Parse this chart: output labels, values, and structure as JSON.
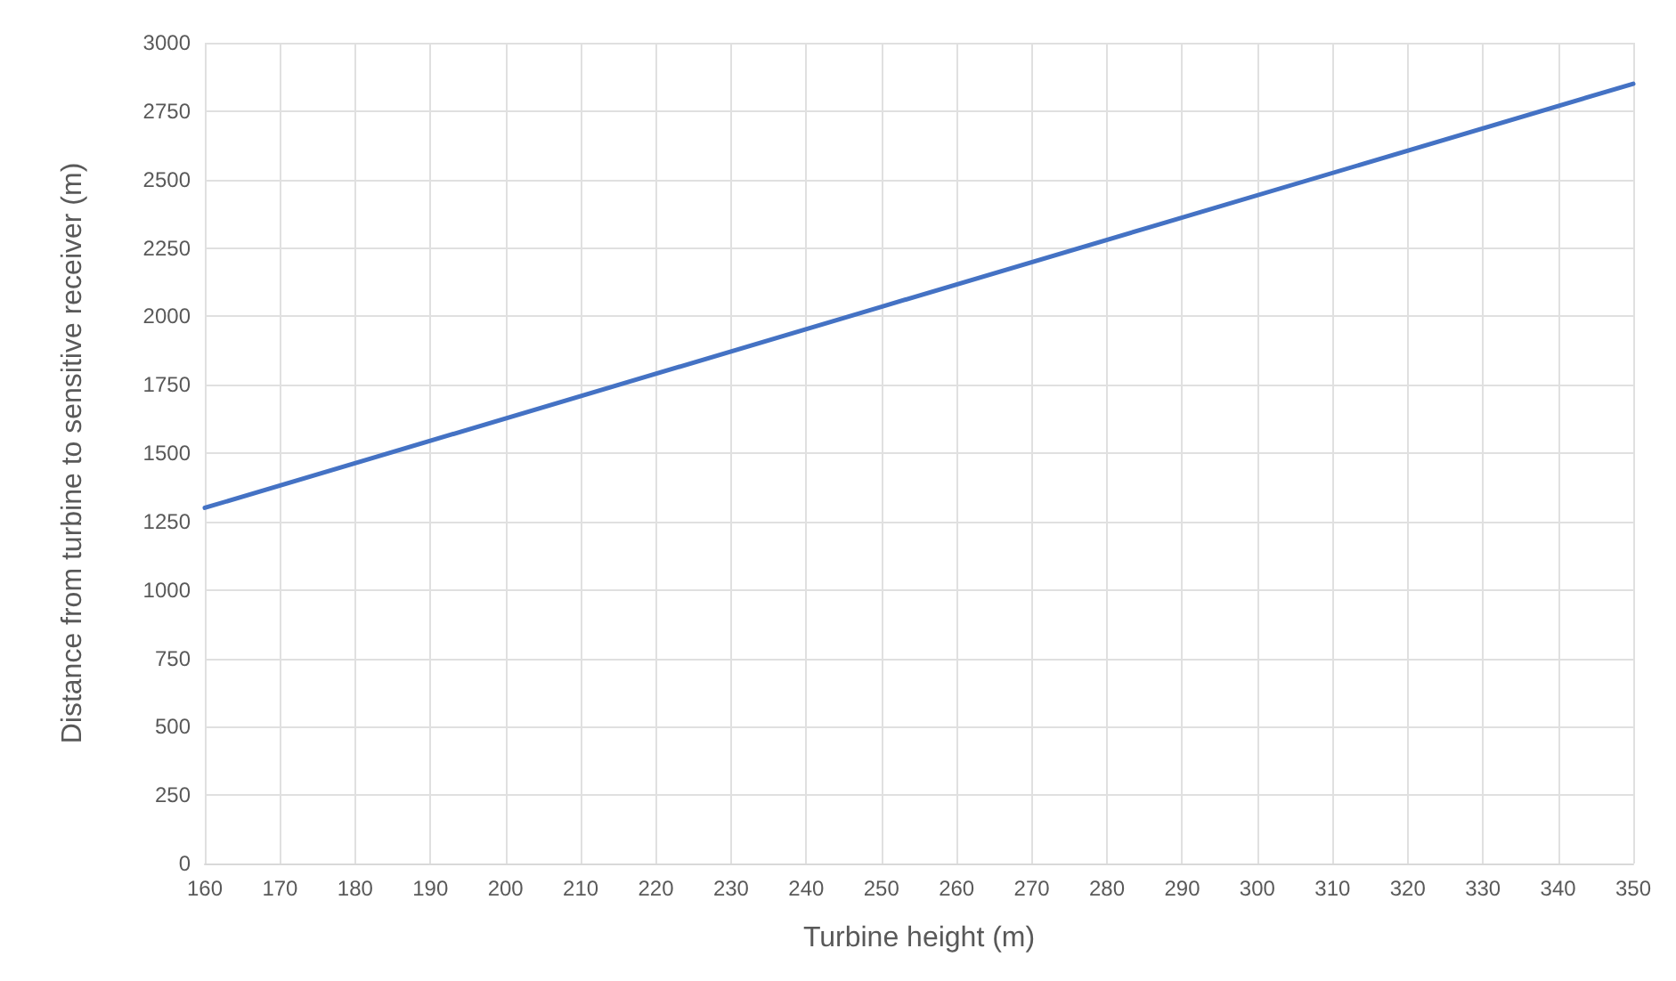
{
  "chart_data": {
    "type": "line",
    "xlabel": "Turbine height (m)",
    "ylabel": "Distance from turbine to sensitive receiver (m)",
    "x": [
      160,
      250,
      350
    ],
    "series": [
      {
        "color": "#4472c4",
        "values": [
          1300,
          2035,
          2850
        ]
      }
    ],
    "xlim": [
      160,
      350
    ],
    "xticks": [
      160,
      170,
      180,
      190,
      200,
      210,
      220,
      230,
      240,
      250,
      260,
      270,
      280,
      290,
      300,
      310,
      320,
      330,
      340,
      350
    ],
    "ylim": [
      0,
      3000
    ],
    "yticks": [
      0,
      250,
      500,
      750,
      1000,
      1250,
      1500,
      1750,
      2000,
      2250,
      2500,
      2750,
      3000
    ],
    "grid": true,
    "marker": "none",
    "line_style": "solid"
  }
}
